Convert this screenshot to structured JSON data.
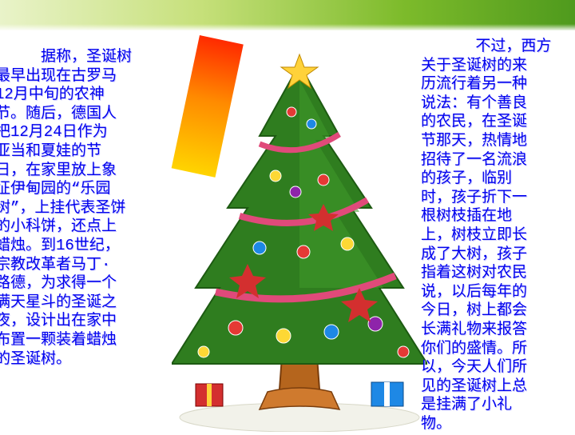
{
  "left_paragraph": "     据称，圣诞树\n最早出现在古罗马\n12月中旬的农神\n节。随后，德国人\n把12月24日作为\n亚当和夏娃的节\n日，在家里放上象\n征伊甸园的“乐园\n树”，上挂代表圣饼\n的小科饼，还点上\n蜡烛。到16世纪，\n宗教改革者马丁·\n路德，为求得一个\n满天星斗的圣诞之\n夜，设计出在家中\n布置一颗装着蜡烛\n的圣诞树。",
  "right_paragraph": "      不过，西方\n关于圣诞树的来\n历流行着另一种\n说法：有个善良\n的农民，在圣诞\n节那天，热情地\n招待了一名流浪\n的孩子，临别\n时，孩子折下一\n根树枝插在地\n上，树枝立即长\n成了大树，孩子\n指着这树对农民\n说，以后每年的\n今日，树上都会\n长满礼物来报答\n你们的盛情。所\n以，今天人们所\n见的圣诞树上总\n是挂满了小礼\n物。",
  "colors": {
    "text": "#0000ee",
    "band_dark": "#4f9a1d",
    "tree_green": "#2f7d1f",
    "trunk": "#b5651d"
  }
}
